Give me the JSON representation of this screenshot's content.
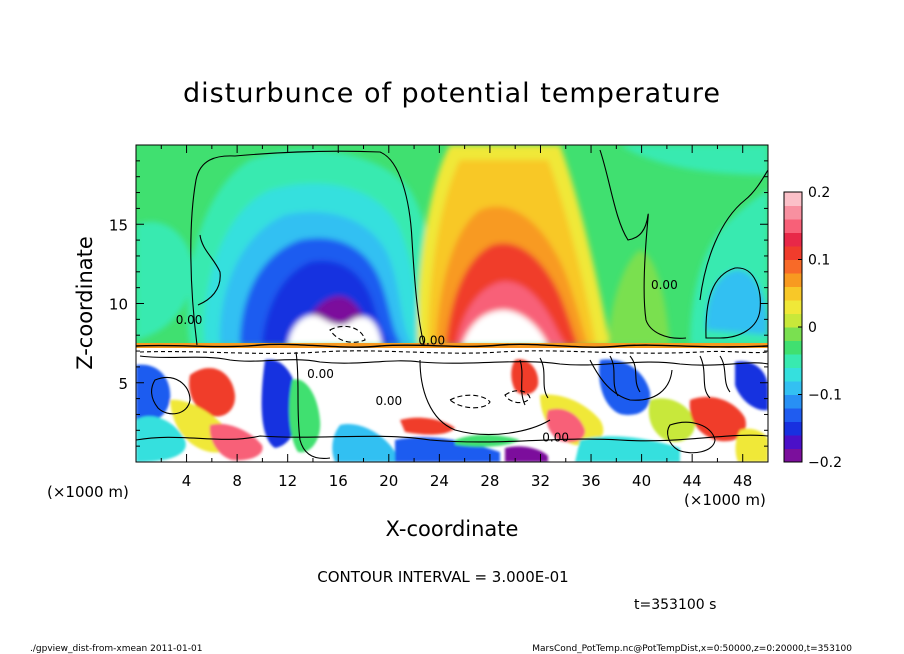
{
  "chart_data": {
    "type": "heatmap",
    "title": "disturbunce of potential temperature",
    "xlabel": "X-coordinate",
    "ylabel": "Z-coordinate",
    "x_unit_left": "(×1000 m)",
    "x_unit_right": "(×1000 m)",
    "xlim": [
      0,
      50
    ],
    "ylim": [
      0,
      20
    ],
    "x_ticks": [
      4,
      8,
      12,
      16,
      20,
      24,
      28,
      32,
      36,
      40,
      44,
      48
    ],
    "y_ticks": [
      5,
      10,
      15
    ],
    "colorbar": {
      "range": [
        -0.2,
        0.2
      ],
      "ticks": [
        "0.2",
        "0.1",
        "0",
        "−0.1",
        "−0.2"
      ],
      "tick_values": [
        0.2,
        0.1,
        0,
        -0.1,
        -0.2
      ],
      "colors": [
        "#7b0f9c",
        "#4b10c8",
        "#1830e0",
        "#1f5cf0",
        "#2890f4",
        "#33c0f2",
        "#35e0de",
        "#38eab0",
        "#40e070",
        "#7ae050",
        "#c8e83a",
        "#f0e838",
        "#f8c828",
        "#f89a20",
        "#f86a28",
        "#f03c2c",
        "#e82848",
        "#f86078",
        "#f890a0",
        "#fbc0c8"
      ]
    },
    "contour_label": "0.00",
    "contour_interval_text": "CONTOUR INTERVAL = 3.000E-01",
    "time_text": "t=353100 s",
    "annotations": [
      {
        "text": "0.00",
        "x": 4.2,
        "z": 8.7
      },
      {
        "text": "0.00",
        "x": 23.4,
        "z": 7.4
      },
      {
        "text": "0.00",
        "x": 41.8,
        "z": 10.9
      },
      {
        "text": "0.00",
        "x": 20.0,
        "z": 3.6
      },
      {
        "text": "0.00",
        "x": 14.6,
        "z": 5.3
      },
      {
        "text": "0.00",
        "x": 33.2,
        "z": 1.3
      }
    ]
  },
  "footer": {
    "left": "./gpview_dist-from-xmean  2011-01-01",
    "right": "MarsCond_PotTemp.nc@PotTempDist,x=0:50000,z=0:20000,t=353100"
  }
}
